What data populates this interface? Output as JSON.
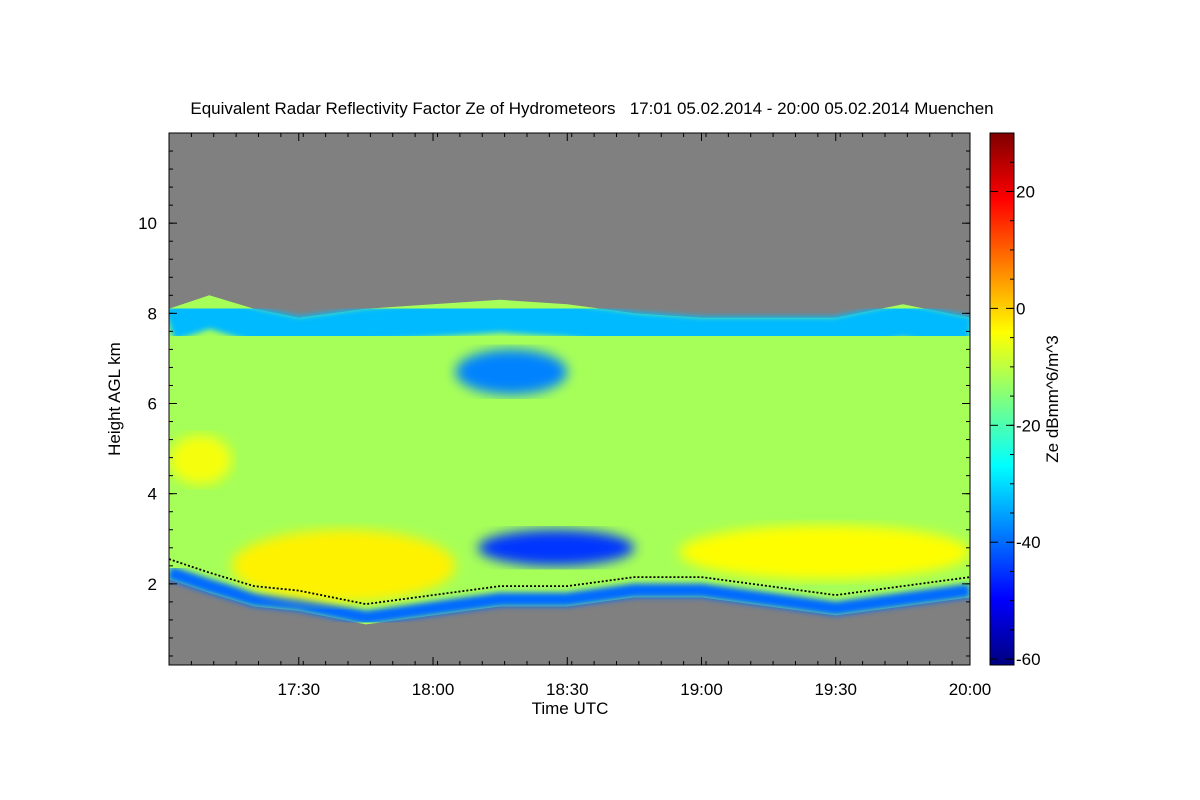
{
  "chart_data": {
    "type": "heatmap",
    "title": "Equivalent Radar Reflectivity Factor Ze of Hydrometeors   17:01 05.02.2014 - 20:00 05.02.2014 Muenchen",
    "xlabel": "Time UTC",
    "ylabel": "Height AGL km",
    "colorbar_label": "Ze dBmm^6/m^3",
    "x_range": [
      "17:01",
      "20:00"
    ],
    "y_range": [
      0.2,
      12.0
    ],
    "x_ticks": [
      "17:30",
      "18:00",
      "18:30",
      "19:00",
      "19:30",
      "20:00"
    ],
    "y_ticks": [
      2,
      4,
      6,
      8,
      10
    ],
    "colorbar_range": [
      -61,
      30
    ],
    "colorbar_ticks": [
      -60,
      -40,
      -20,
      0,
      20
    ],
    "colormap": [
      "#00007f",
      "#0000ff",
      "#007fff",
      "#00ffff",
      "#7fff7f",
      "#ffff00",
      "#ff7f00",
      "#ff0000",
      "#7f0000"
    ],
    "no_data_color": "#808080",
    "cloud_top_km": [
      [
        "17:01",
        8.1
      ],
      [
        "17:10",
        8.4
      ],
      [
        "17:20",
        8.1
      ],
      [
        "17:30",
        7.9
      ],
      [
        "17:45",
        8.1
      ],
      [
        "18:00",
        8.2
      ],
      [
        "18:15",
        8.3
      ],
      [
        "18:30",
        8.2
      ],
      [
        "18:45",
        8.0
      ],
      [
        "19:00",
        7.9
      ],
      [
        "19:15",
        7.9
      ],
      [
        "19:30",
        7.9
      ],
      [
        "19:45",
        8.2
      ],
      [
        "20:00",
        7.9
      ]
    ],
    "cloud_base_km": [
      [
        "17:01",
        2.1
      ],
      [
        "17:10",
        1.8
      ],
      [
        "17:20",
        1.5
      ],
      [
        "17:30",
        1.4
      ],
      [
        "17:45",
        1.1
      ],
      [
        "18:00",
        1.3
      ],
      [
        "18:15",
        1.5
      ],
      [
        "18:30",
        1.5
      ],
      [
        "18:45",
        1.7
      ],
      [
        "19:00",
        1.7
      ],
      [
        "19:15",
        1.5
      ],
      [
        "19:30",
        1.3
      ],
      [
        "19:45",
        1.5
      ],
      [
        "20:00",
        1.7
      ]
    ],
    "reflectivity_regions": [
      {
        "t_start": "17:01",
        "t_end": "17:15",
        "h_low": 4.2,
        "h_high": 5.3,
        "ze_dbz": -5
      },
      {
        "t_start": "17:15",
        "t_end": "18:05",
        "h_low": 1.6,
        "h_high": 3.2,
        "ze_dbz": -3
      },
      {
        "t_start": "18:55",
        "t_end": "20:00",
        "h_low": 2.1,
        "h_high": 3.3,
        "ze_dbz": -4
      },
      {
        "t_start": "18:10",
        "t_end": "18:45",
        "h_low": 2.4,
        "h_high": 3.2,
        "ze_dbz": -45
      },
      {
        "t_start": "18:05",
        "t_end": "18:30",
        "h_low": 6.2,
        "h_high": 7.2,
        "ze_dbz": -38
      }
    ]
  }
}
